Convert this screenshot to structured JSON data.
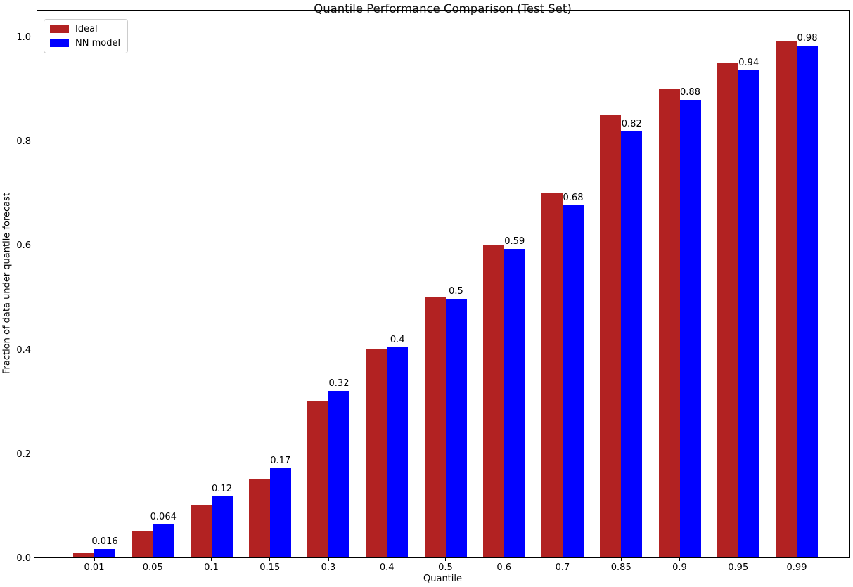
{
  "figure": {
    "title": "Quantile Performance Comparison (Test Set)",
    "xlabel": "Quantile",
    "ylabel": "Fraction of data under quantile forecast"
  },
  "legend": {
    "entries": [
      {
        "label": "Ideal",
        "color": "#B22222"
      },
      {
        "label": "NN model",
        "color": "#0000FF"
      }
    ]
  },
  "chart_data": {
    "type": "bar",
    "title": "Quantile Performance Comparison (Test Set)",
    "xlabel": "Quantile",
    "ylabel": "Fraction of data under quantile forecast",
    "categories": [
      "0.01",
      "0.05",
      "0.1",
      "0.15",
      "0.3",
      "0.4",
      "0.5",
      "0.6",
      "0.7",
      "0.85",
      "0.9",
      "0.95",
      "0.99"
    ],
    "series": [
      {
        "name": "Ideal",
        "color": "#B22222",
        "values": [
          0.01,
          0.05,
          0.1,
          0.15,
          0.3,
          0.4,
          0.5,
          0.6,
          0.7,
          0.85,
          0.9,
          0.95,
          0.99
        ]
      },
      {
        "name": "NN model",
        "color": "#0000FF",
        "values": [
          0.016,
          0.064,
          0.117,
          0.171,
          0.32,
          0.403,
          0.497,
          0.592,
          0.676,
          0.818,
          0.878,
          0.935,
          0.983
        ],
        "bar_labels": [
          "0.016",
          "0.064",
          "0.12",
          "0.17",
          "0.32",
          "0.4",
          "0.5",
          "0.59",
          "0.68",
          "0.82",
          "0.88",
          "0.94",
          "0.98"
        ]
      }
    ],
    "ylim": [
      0,
      1.05
    ],
    "yticks": [
      0.0,
      0.2,
      0.4,
      0.6,
      0.8,
      1.0
    ],
    "ytick_labels": [
      "0.0",
      "0.2",
      "0.4",
      "0.6",
      "0.8",
      "1.0"
    ],
    "grid": false,
    "legend_position": "upper left"
  }
}
